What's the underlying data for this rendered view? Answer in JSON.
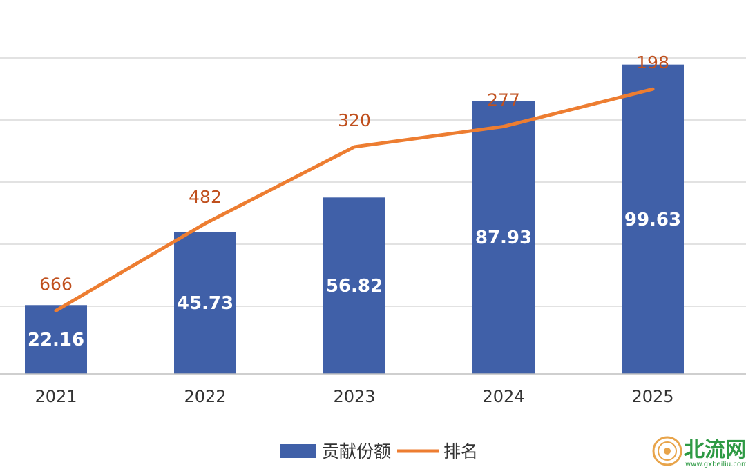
{
  "chart_data": {
    "type": "bar",
    "categories": [
      "2021",
      "2022",
      "2023",
      "2024",
      "2025"
    ],
    "series": [
      {
        "name": "贡献份额",
        "type": "bar",
        "values": [
          22.16,
          45.73,
          56.82,
          87.93,
          99.63
        ],
        "color": "#4060A8"
      },
      {
        "name": "排名",
        "type": "line",
        "values": [
          666,
          482,
          320,
          277,
          198
        ],
        "color": "#ED7D31",
        "label_color": "#C0501E",
        "axis": "secondary-reversed"
      }
    ],
    "ylim": [
      0,
      100
    ],
    "rank_axis": {
      "reversed": true,
      "range": [
        750,
        100
      ]
    },
    "grid": true,
    "legend": "bottom-center"
  },
  "watermark": {
    "text": "北流网",
    "url": "www.gxbeiliu.com.cn",
    "color": "#2E9A44",
    "badge_color": "#E8A44A"
  }
}
